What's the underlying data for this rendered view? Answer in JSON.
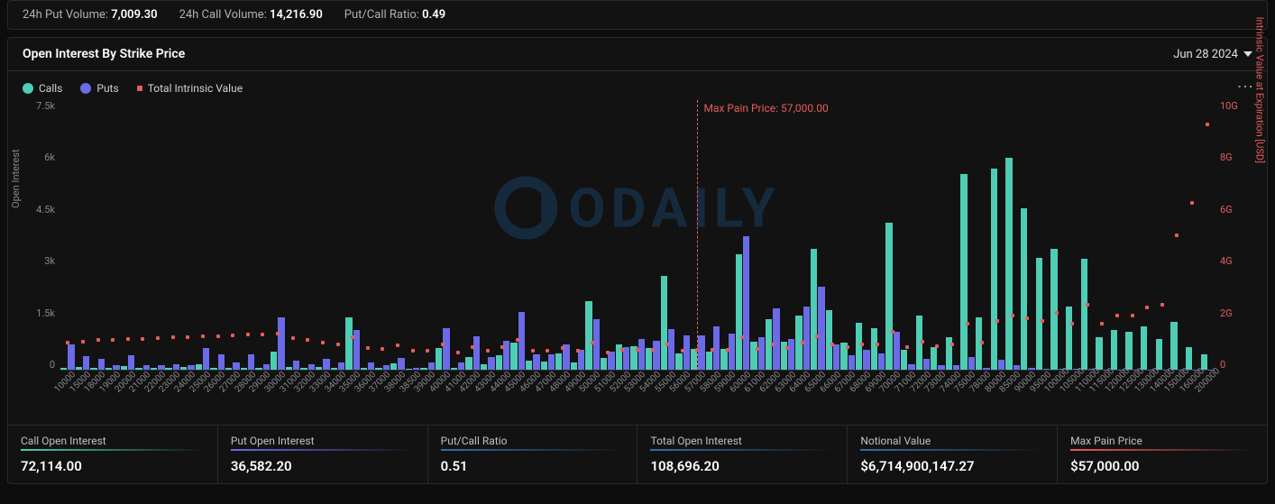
{
  "colors": {
    "calls": "#4ecdb4",
    "puts": "#6b6be8",
    "intrinsic": "#e85c5c",
    "bg": "#121212",
    "border": "#2a2a2a",
    "text_muted": "#888"
  },
  "top_stats": {
    "put_vol_label": "24h Put Volume:",
    "put_vol_value": "7,009.30",
    "call_vol_label": "24h Call Volume:",
    "call_vol_value": "14,216.90",
    "ratio_label": "Put/Call Ratio:",
    "ratio_value": "0.49"
  },
  "panel": {
    "title": "Open Interest By Strike Price",
    "date": "Jun 28 2024"
  },
  "legend": {
    "calls": "Calls",
    "puts": "Puts",
    "intrinsic": "Total Intrinsic Value"
  },
  "y_left": {
    "label": "Open Interest",
    "ticks": [
      "7.5k",
      "6k",
      "4.5k",
      "3k",
      "1.5k",
      "0"
    ],
    "max": 7500
  },
  "y_right": {
    "label": "Intrinsic Value at Expiration [USD]",
    "ticks": [
      "10G",
      "8G",
      "6G",
      "4G",
      "2G",
      "0"
    ],
    "max": 10
  },
  "max_pain": {
    "label": "Max Pain Price: 57,000.00",
    "strike": "57000"
  },
  "watermark": "ODAILY",
  "chart": {
    "strikes": [
      "10000",
      "15000",
      "18000",
      "19000",
      "20000",
      "21000",
      "22000",
      "23000",
      "24000",
      "25000",
      "26000",
      "27000",
      "28000",
      "29000",
      "30000",
      "31000",
      "32000",
      "33000",
      "34000",
      "35000",
      "36000",
      "37000",
      "38000",
      "38500",
      "39000",
      "40000",
      "41000",
      "42000",
      "43000",
      "44000",
      "45000",
      "46000",
      "47000",
      "48000",
      "49000",
      "50000",
      "51000",
      "52000",
      "53000",
      "54000",
      "55000",
      "56000",
      "57000",
      "58000",
      "59000",
      "60000",
      "61000",
      "62000",
      "63000",
      "64000",
      "65000",
      "66000",
      "67000",
      "68000",
      "69000",
      "70000",
      "71000",
      "72000",
      "73000",
      "74000",
      "75000",
      "78000",
      "80000",
      "85000",
      "90000",
      "95000",
      "100000",
      "105000",
      "110000",
      "115000",
      "120000",
      "125000",
      "130000",
      "140000",
      "150000",
      "160000",
      "200000"
    ],
    "calls": [
      50,
      80,
      60,
      40,
      100,
      50,
      60,
      50,
      80,
      150,
      60,
      50,
      60,
      40,
      500,
      80,
      60,
      80,
      60,
      1450,
      50,
      40,
      180,
      30,
      50,
      600,
      60,
      350,
      150,
      400,
      750,
      250,
      220,
      450,
      200,
      1900,
      330,
      700,
      650,
      600,
      2620,
      450,
      570,
      500,
      570,
      3200,
      780,
      1400,
      780,
      1500,
      3350,
      1650,
      750,
      1300,
      1150,
      4100,
      550,
      1500,
      620,
      900,
      5450,
      1450,
      5600,
      5900,
      4500,
      3100,
      3350,
      1750,
      3080,
      900,
      1100,
      1050,
      1200,
      850,
      1340,
      630,
      430
    ],
    "puts": [
      700,
      380,
      300,
      120,
      400,
      120,
      120,
      140,
      120,
      600,
      420,
      200,
      420,
      150,
      1450,
      250,
      150,
      300,
      200,
      1100,
      200,
      130,
      320,
      50,
      200,
      1150,
      200,
      920,
      350,
      800,
      1600,
      430,
      420,
      700,
      550,
      1400,
      500,
      620,
      850,
      800,
      1120,
      950,
      950,
      1200,
      1000,
      3720,
      900,
      1700,
      850,
      1750,
      2320,
      700,
      400,
      550,
      450,
      1050,
      140,
      300,
      130,
      120,
      350,
      60,
      280,
      130,
      40,
      30,
      30,
      20,
      18,
      12,
      10,
      8,
      6,
      5,
      4,
      3,
      2
    ],
    "intrinsic": [
      1.0,
      1.05,
      1.1,
      1.1,
      1.15,
      1.15,
      1.18,
      1.2,
      1.2,
      1.25,
      1.25,
      1.28,
      1.3,
      1.3,
      1.35,
      1.18,
      1.1,
      1.0,
      0.95,
      1.2,
      0.8,
      0.78,
      0.9,
      0.7,
      0.7,
      0.95,
      0.65,
      0.85,
      0.7,
      0.85,
      1.1,
      0.7,
      0.7,
      0.8,
      0.7,
      1.0,
      0.65,
      0.75,
      0.75,
      0.75,
      0.95,
      0.7,
      0.72,
      0.75,
      0.75,
      1.2,
      0.78,
      0.95,
      0.8,
      1.0,
      1.25,
      0.95,
      0.85,
      0.95,
      0.95,
      1.4,
      0.85,
      1.05,
      0.88,
      0.95,
      1.7,
      1.0,
      1.8,
      2.0,
      1.9,
      1.8,
      2.1,
      1.7,
      2.4,
      1.7,
      2.0,
      2.0,
      2.3,
      2.4,
      5.0,
      6.2,
      9.1
    ]
  },
  "summary": [
    {
      "label": "Call Open Interest",
      "value": "72,114.00",
      "color": "#4ecdb4"
    },
    {
      "label": "Put Open Interest",
      "value": "36,582.20",
      "color": "#6b6be8"
    },
    {
      "label": "Put/Call Ratio",
      "value": "0.51",
      "color": "#3a6ea5"
    },
    {
      "label": "Total Open Interest",
      "value": "108,696.20",
      "color": "#3a6ea5"
    },
    {
      "label": "Notional Value",
      "value": "$6,714,900,147.27",
      "color": "#3a6ea5"
    },
    {
      "label": "Max Pain Price",
      "value": "$57,000.00",
      "color": "#e85c5c"
    }
  ]
}
